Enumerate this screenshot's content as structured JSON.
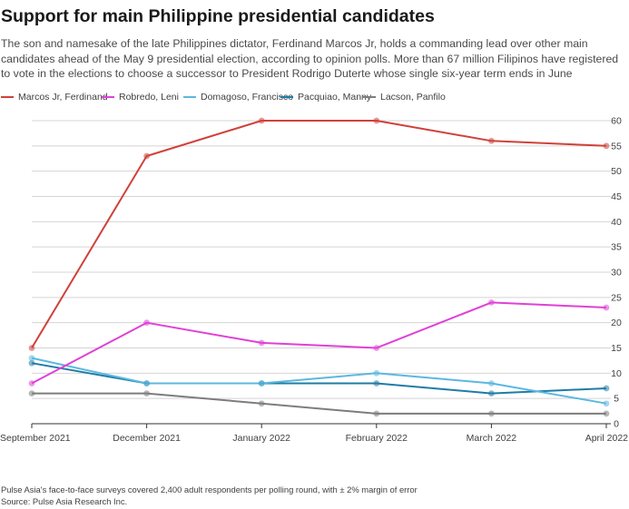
{
  "header": {
    "title": "Support for main Philippine presidential candidates",
    "subtitle": "The son and namesake of the late Philippines dictator, Ferdinand Marcos Jr, holds a commanding lead over other main candidates ahead of the May 9 presidential election, according to opinion polls. More than 67 million Filipinos have registered to vote in the elections to choose a successor to President Rodrigo Duterte whose single six-year term ends in June"
  },
  "footer": {
    "note": "Pulse Asia's face-to-face surveys covered 2,400 adult respondents per polling round, with ± 2% margin of error",
    "source": "Source: Pulse Asia Research Inc."
  },
  "chart_data": {
    "type": "line",
    "title": "Support for main Philippine presidential candidates",
    "x": [
      "September 2021",
      "December 2021",
      "January 2022",
      "February 2022",
      "March 2022",
      "April 2022"
    ],
    "xlabel": "",
    "ylabel": "",
    "ylim": [
      0,
      60
    ],
    "yticks": [
      0,
      5,
      10,
      15,
      20,
      25,
      30,
      35,
      40,
      45,
      50,
      55,
      60
    ],
    "grid": true,
    "legend": "top-left",
    "series": [
      {
        "name": "Marcos Jr, Ferdinand",
        "color": "#d0413a",
        "values": [
          15,
          53,
          60,
          60,
          56,
          55
        ]
      },
      {
        "name": "Robredo, Leni",
        "color": "#e040d8",
        "values": [
          8,
          20,
          16,
          15,
          24,
          23
        ]
      },
      {
        "name": "Domagoso, Francisco",
        "color": "#5bb8e0",
        "values": [
          13,
          8,
          8,
          10,
          8,
          4
        ]
      },
      {
        "name": "Pacquiao, Manny",
        "color": "#1f7ca6",
        "values": [
          12,
          8,
          8,
          8,
          6,
          7
        ]
      },
      {
        "name": "Lacson, Panfilo",
        "color": "#7d7d7d",
        "values": [
          6,
          6,
          4,
          2,
          2,
          2
        ]
      }
    ]
  }
}
